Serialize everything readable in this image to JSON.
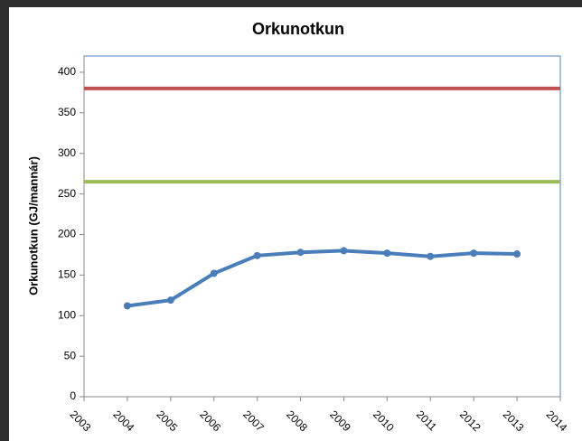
{
  "chart_data": {
    "type": "line",
    "title": "Orkunotkun",
    "y_label": "Orkunotkun (GJ/mannár)",
    "x": [
      2004,
      2005,
      2006,
      2007,
      2008,
      2009,
      2010,
      2011,
      2012,
      2013
    ],
    "series": [
      {
        "color": "#4a7ebb",
        "values": [
          112,
          119,
          152,
          174,
          178,
          180,
          177,
          173,
          177,
          176
        ]
      }
    ],
    "reference_lines": [
      {
        "value": 380,
        "color": "#c0504d"
      },
      {
        "value": 265,
        "color": "#9bbb59"
      }
    ],
    "xlim": [
      2003,
      2014
    ],
    "xticks": [
      2003,
      2004,
      2005,
      2006,
      2007,
      2008,
      2009,
      2010,
      2011,
      2012,
      2013,
      2014
    ],
    "ylim": [
      0,
      420
    ],
    "yticks": [
      0,
      50,
      100,
      150,
      200,
      250,
      300,
      350,
      400
    ]
  }
}
